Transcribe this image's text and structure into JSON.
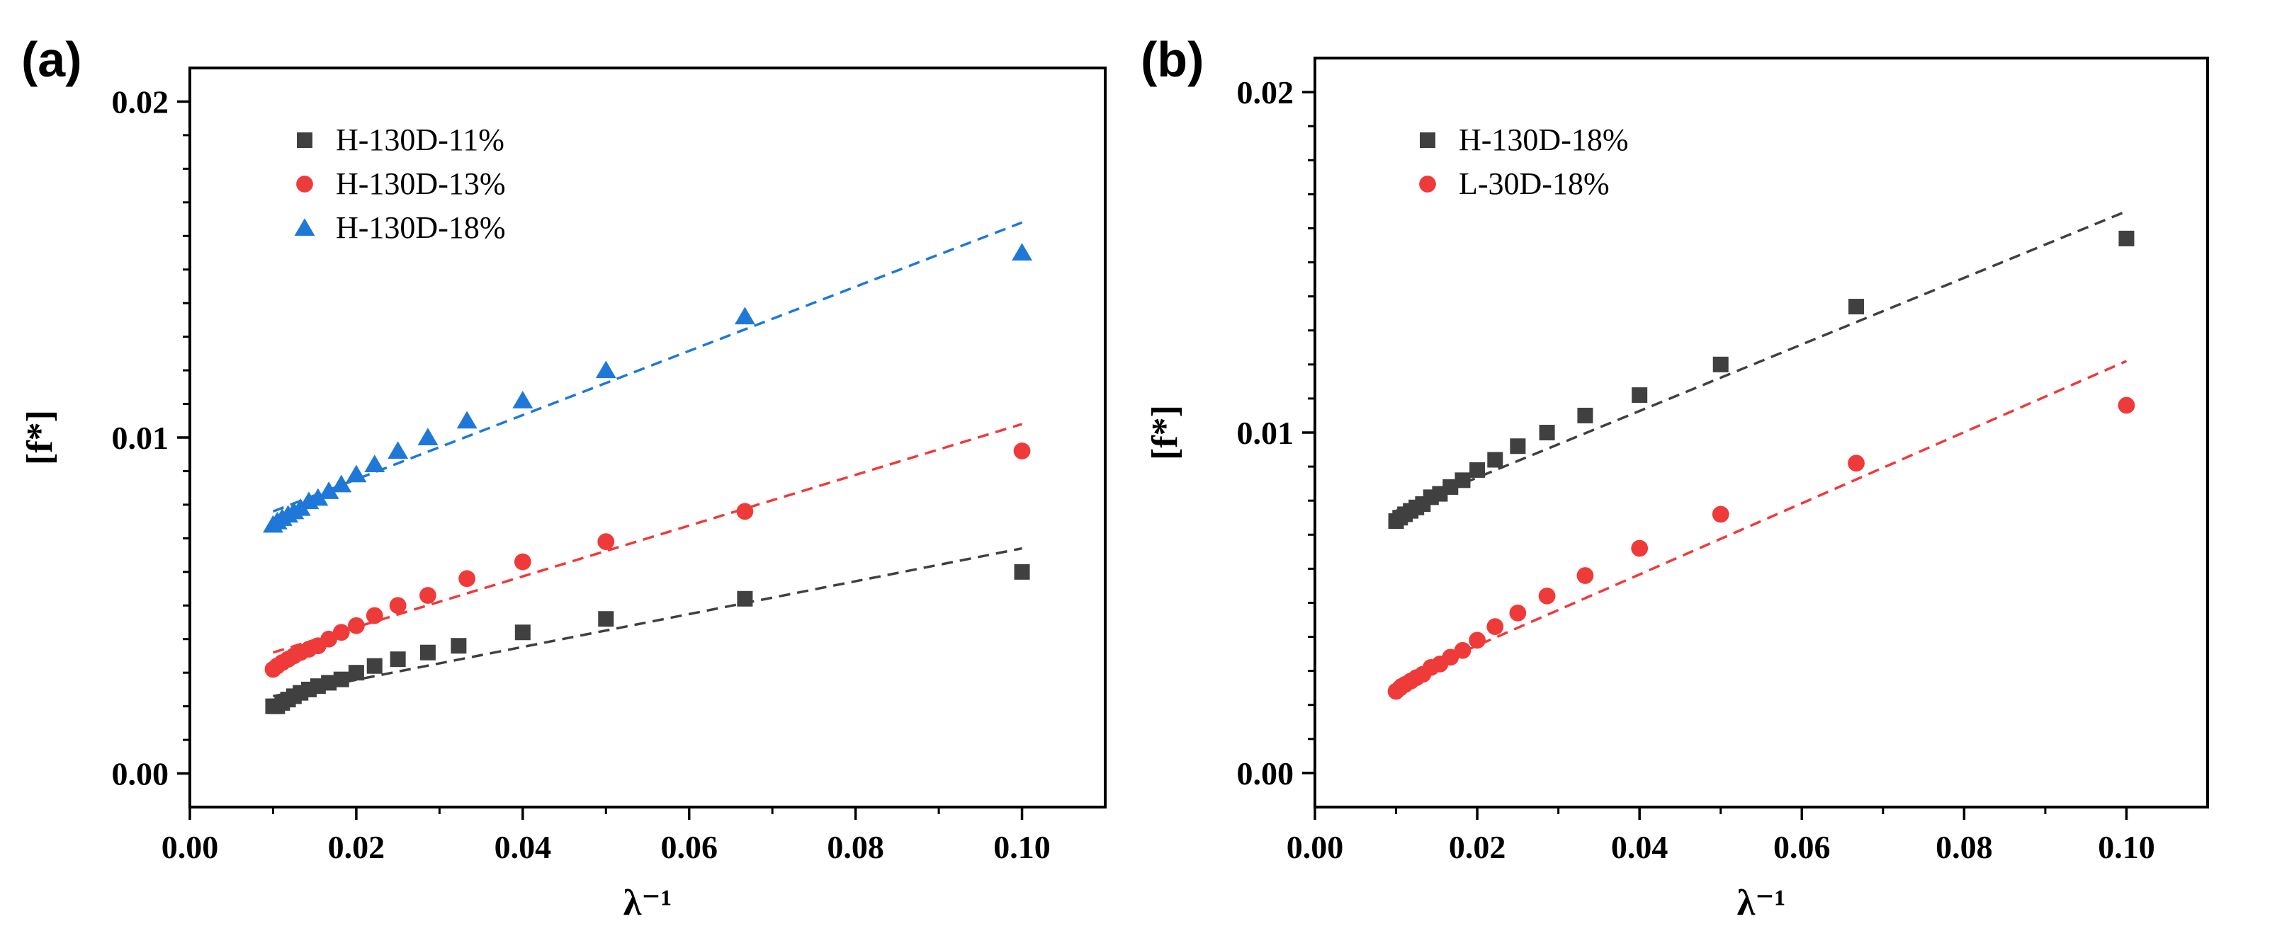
{
  "figure": {
    "panel_a_label": "(a)",
    "panel_b_label": "(b)"
  },
  "chart_data": [
    {
      "type": "scatter",
      "panel": "(a)",
      "xlabel": "λ⁻¹",
      "ylabel": "[f*]",
      "xlim": [
        0.0,
        0.11
      ],
      "ylim": [
        -0.001,
        0.021
      ],
      "xticks": [
        "0.00",
        "0.02",
        "0.04",
        "0.06",
        "0.08",
        "0.10"
      ],
      "yticks": [
        "0.00",
        "0.01",
        "0.02"
      ],
      "legend_position": "top-left",
      "series": [
        {
          "name": "H-130D-11%",
          "marker": "square",
          "color": "#404040",
          "x": [
            0.01,
            0.0105,
            0.0111,
            0.0118,
            0.0125,
            0.0133,
            0.0143,
            0.0154,
            0.0167,
            0.0182,
            0.02,
            0.0222,
            0.025,
            0.0286,
            0.0323,
            0.04,
            0.05,
            0.0667,
            0.1
          ],
          "y": [
            0.002,
            0.002,
            0.0021,
            0.0022,
            0.0023,
            0.0024,
            0.0025,
            0.0026,
            0.0027,
            0.0028,
            0.003,
            0.0032,
            0.0034,
            0.0036,
            0.0038,
            0.0042,
            0.0046,
            0.0052,
            0.006
          ],
          "fit": {
            "x": [
              0.01,
              0.1
            ],
            "y": [
              0.0023,
              0.0067
            ]
          }
        },
        {
          "name": "H-130D-13%",
          "marker": "circle",
          "color": "#ef3a3a",
          "x": [
            0.01,
            0.0105,
            0.0111,
            0.0118,
            0.0125,
            0.0133,
            0.0143,
            0.0154,
            0.0167,
            0.0182,
            0.02,
            0.0222,
            0.025,
            0.0286,
            0.0333,
            0.04,
            0.05,
            0.0667,
            0.1
          ],
          "y": [
            0.0031,
            0.0032,
            0.0033,
            0.0034,
            0.0035,
            0.0036,
            0.0037,
            0.0038,
            0.004,
            0.0042,
            0.0044,
            0.0047,
            0.005,
            0.0053,
            0.0058,
            0.0063,
            0.0069,
            0.0078,
            0.0096
          ],
          "fit": {
            "x": [
              0.01,
              0.1
            ],
            "y": [
              0.0036,
              0.0104
            ]
          }
        },
        {
          "name": "H-130D-18%",
          "marker": "triangle",
          "color": "#1f78d8",
          "x": [
            0.01,
            0.0105,
            0.0111,
            0.0118,
            0.0125,
            0.0133,
            0.0143,
            0.0154,
            0.0167,
            0.0182,
            0.02,
            0.0222,
            0.025,
            0.0286,
            0.0333,
            0.04,
            0.05,
            0.0667,
            0.1
          ],
          "y": [
            0.0074,
            0.0075,
            0.0076,
            0.0077,
            0.0078,
            0.0079,
            0.0081,
            0.0082,
            0.0084,
            0.0086,
            0.0089,
            0.0092,
            0.0096,
            0.01,
            0.0105,
            0.0111,
            0.012,
            0.0136,
            0.0155
          ],
          "fit": {
            "x": [
              0.01,
              0.1
            ],
            "y": [
              0.0078,
              0.0164
            ]
          }
        }
      ]
    },
    {
      "type": "scatter",
      "panel": "(b)",
      "xlabel": "λ⁻¹",
      "ylabel": "[f*]",
      "xlim": [
        0.0,
        0.11
      ],
      "ylim": [
        -0.001,
        0.021
      ],
      "xticks": [
        "0.00",
        "0.02",
        "0.04",
        "0.06",
        "0.08",
        "0.10"
      ],
      "yticks": [
        "0.00",
        "0.01",
        "0.02"
      ],
      "legend_position": "top-left",
      "series": [
        {
          "name": "H-130D-18%",
          "marker": "square",
          "color": "#404040",
          "x": [
            0.01,
            0.0105,
            0.0111,
            0.0118,
            0.0125,
            0.0133,
            0.0143,
            0.0154,
            0.0167,
            0.0182,
            0.02,
            0.0222,
            0.025,
            0.0286,
            0.0333,
            0.04,
            0.05,
            0.0667,
            0.1
          ],
          "y": [
            0.0074,
            0.0075,
            0.0076,
            0.0077,
            0.0078,
            0.0079,
            0.0081,
            0.0082,
            0.0084,
            0.0086,
            0.0089,
            0.0092,
            0.0096,
            0.01,
            0.0105,
            0.0111,
            0.012,
            0.0137,
            0.0157
          ],
          "fit": {
            "x": [
              0.01,
              0.1
            ],
            "y": [
              0.0077,
              0.0165
            ]
          }
        },
        {
          "name": "L-30D-18%",
          "marker": "circle",
          "color": "#ef3a3a",
          "x": [
            0.01,
            0.0105,
            0.0111,
            0.0118,
            0.0125,
            0.0133,
            0.0143,
            0.0154,
            0.0167,
            0.0182,
            0.02,
            0.0222,
            0.025,
            0.0286,
            0.0333,
            0.04,
            0.05,
            0.0667,
            0.1
          ],
          "y": [
            0.0024,
            0.0025,
            0.0026,
            0.0027,
            0.0028,
            0.0029,
            0.0031,
            0.0032,
            0.0034,
            0.0036,
            0.0039,
            0.0043,
            0.0047,
            0.0052,
            0.0058,
            0.0066,
            0.0076,
            0.0091,
            0.0108
          ],
          "fit": {
            "x": [
              0.01,
              0.1
            ],
            "y": [
              0.0027,
              0.0121
            ]
          }
        }
      ]
    }
  ]
}
